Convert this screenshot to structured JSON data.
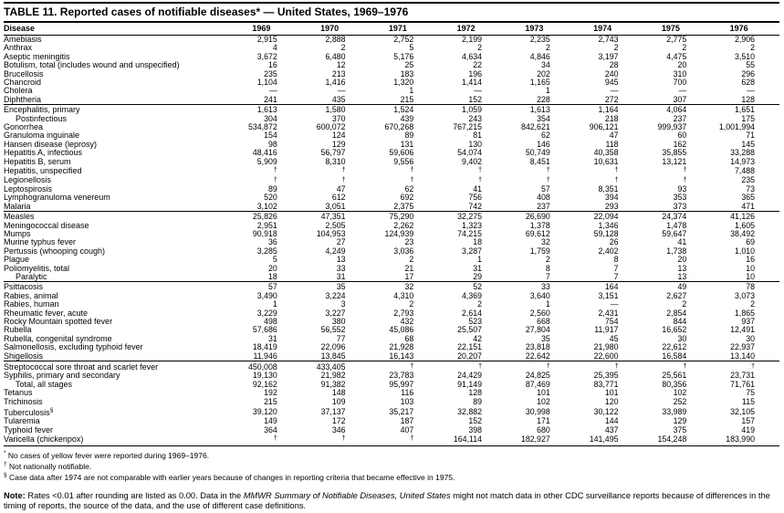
{
  "title": "TABLE 11. Reported cases of notifiable diseases* — United States, 1969–1976",
  "table": {
    "columns": [
      "Disease",
      "1969",
      "1970",
      "1971",
      "1972",
      "1973",
      "1974",
      "1975",
      "1976"
    ],
    "groups": [
      {
        "rows": [
          {
            "disease": "Amebiasis",
            "values": [
              "2,915",
              "2,888",
              "2,752",
              "2,199",
              "2,235",
              "2,743",
              "2,775",
              "2,906"
            ]
          },
          {
            "disease": "Anthrax",
            "values": [
              "4",
              "2",
              "5",
              "2",
              "2",
              "2",
              "2",
              "2"
            ]
          },
          {
            "disease": "Aseptic meningitis",
            "values": [
              "3,672",
              "6,480",
              "5,176",
              "4,634",
              "4,846",
              "3,197",
              "4,475",
              "3,510"
            ]
          },
          {
            "disease": "Botulism, total (includes wound and unspecified)",
            "values": [
              "16",
              "12",
              "25",
              "22",
              "34",
              "28",
              "20",
              "55"
            ]
          },
          {
            "disease": "Brucellosis",
            "values": [
              "235",
              "213",
              "183",
              "196",
              "202",
              "240",
              "310",
              "296"
            ]
          },
          {
            "disease": "Chancroid",
            "values": [
              "1,104",
              "1,416",
              "1,320",
              "1,414",
              "1,165",
              "945",
              "700",
              "628"
            ]
          },
          {
            "disease": "Cholera",
            "values": [
              "—",
              "—",
              "1",
              "—",
              "1",
              "—",
              "—",
              "—"
            ]
          },
          {
            "disease": "Diphtheria",
            "values": [
              "241",
              "435",
              "215",
              "152",
              "228",
              "272",
              "307",
              "128"
            ]
          }
        ]
      },
      {
        "rows": [
          {
            "disease": "Encephalitis, primary",
            "values": [
              "1,613",
              "1,580",
              "1,524",
              "1,059",
              "1,613",
              "1,164",
              "4,064",
              "1,651"
            ]
          },
          {
            "disease": "Postinfectious",
            "indent": true,
            "values": [
              "304",
              "370",
              "439",
              "243",
              "354",
              "218",
              "237",
              "175"
            ]
          },
          {
            "disease": "Gonorrhea",
            "values": [
              "534,872",
              "600,072",
              "670,268",
              "767,215",
              "842,621",
              "906,121",
              "999,937",
              "1,001,994"
            ]
          },
          {
            "disease": "Granuloma inguinale",
            "values": [
              "154",
              "124",
              "89",
              "81",
              "62",
              "47",
              "60",
              "71"
            ]
          },
          {
            "disease": "Hansen disease (leprosy)",
            "values": [
              "98",
              "129",
              "131",
              "130",
              "146",
              "118",
              "162",
              "145"
            ]
          },
          {
            "disease": "Hepatitis A, infectious",
            "values": [
              "48,416",
              "56,797",
              "59,606",
              "54,074",
              "50,749",
              "40,358",
              "35,855",
              "33,288"
            ]
          },
          {
            "disease": "Hepatitis B, serum",
            "values": [
              "5,909",
              "8,310",
              "9,556",
              "9,402",
              "8,451",
              "10,631",
              "13,121",
              "14,973"
            ]
          },
          {
            "disease": "Hepatitis, unspecified",
            "values": [
              "†",
              "†",
              "†",
              "†",
              "†",
              "†",
              "†",
              "7,488"
            ]
          },
          {
            "disease": "Legionellosis",
            "values": [
              "†",
              "†",
              "†",
              "†",
              "†",
              "†",
              "†",
              "235"
            ]
          },
          {
            "disease": "Leptospirosis",
            "values": [
              "89",
              "47",
              "62",
              "41",
              "57",
              "8,351",
              "93",
              "73"
            ]
          },
          {
            "disease": "Lymphogranuloma venereum",
            "values": [
              "520",
              "612",
              "692",
              "756",
              "408",
              "394",
              "353",
              "365"
            ]
          },
          {
            "disease": "Malaria",
            "values": [
              "3,102",
              "3,051",
              "2,375",
              "742",
              "237",
              "293",
              "373",
              "471"
            ]
          }
        ]
      },
      {
        "rows": [
          {
            "disease": "Measles",
            "values": [
              "25,826",
              "47,351",
              "75,290",
              "32,275",
              "26,690",
              "22,094",
              "24,374",
              "41,126"
            ]
          },
          {
            "disease": "Meningococcal disease",
            "values": [
              "2,951",
              "2,505",
              "2,262",
              "1,323",
              "1,378",
              "1,346",
              "1,478",
              "1,605"
            ]
          },
          {
            "disease": "Mumps",
            "values": [
              "90,918",
              "104,953",
              "124,939",
              "74,215",
              "69,612",
              "59,128",
              "59,647",
              "38,492"
            ]
          },
          {
            "disease": "Murine typhus fever",
            "values": [
              "36",
              "27",
              "23",
              "18",
              "32",
              "26",
              "41",
              "69"
            ]
          },
          {
            "disease": "Pertussis (whooping cough)",
            "values": [
              "3,285",
              "4,249",
              "3,036",
              "3,287",
              "1,759",
              "2,402",
              "1,738",
              "1,010"
            ]
          },
          {
            "disease": "Plague",
            "values": [
              "5",
              "13",
              "2",
              "1",
              "2",
              "8",
              "20",
              "16"
            ]
          },
          {
            "disease": "Poliomyelitis, total",
            "values": [
              "20",
              "33",
              "21",
              "31",
              "8",
              "7",
              "13",
              "10"
            ]
          },
          {
            "disease": "Paralytic",
            "indent": true,
            "values": [
              "18",
              "31",
              "17",
              "29",
              "7",
              "7",
              "13",
              "10"
            ]
          }
        ]
      },
      {
        "rows": [
          {
            "disease": "Psittacosis",
            "values": [
              "57",
              "35",
              "32",
              "52",
              "33",
              "164",
              "49",
              "78"
            ]
          },
          {
            "disease": "Rabies, animal",
            "values": [
              "3,490",
              "3,224",
              "4,310",
              "4,369",
              "3,640",
              "3,151",
              "2,627",
              "3,073"
            ]
          },
          {
            "disease": "Rabies, human",
            "values": [
              "1",
              "3",
              "2",
              "2",
              "1",
              "—",
              "2",
              "2"
            ]
          },
          {
            "disease": "Rheumatic fever, acute",
            "values": [
              "3,229",
              "3,227",
              "2,793",
              "2,614",
              "2,560",
              "2,431",
              "2,854",
              "1,865"
            ]
          },
          {
            "disease": "Rocky Mountain spotted fever",
            "values": [
              "498",
              "380",
              "432",
              "523",
              "668",
              "754",
              "844",
              "937"
            ]
          },
          {
            "disease": "Rubella",
            "values": [
              "57,686",
              "56,552",
              "45,086",
              "25,507",
              "27,804",
              "11,917",
              "16,652",
              "12,491"
            ]
          },
          {
            "disease": "Rubella, congenital syndrome",
            "values": [
              "31",
              "77",
              "68",
              "42",
              "35",
              "45",
              "30",
              "30"
            ]
          },
          {
            "disease": "Salmonellosis, excluding typhoid fever",
            "values": [
              "18,419",
              "22,096",
              "21,928",
              "22,151",
              "23,818",
              "21,980",
              "22,612",
              "22,937"
            ]
          },
          {
            "disease": "Shigellosis",
            "values": [
              "11,946",
              "13,845",
              "16,143",
              "20,207",
              "22,642",
              "22,600",
              "16,584",
              "13,140"
            ]
          }
        ]
      },
      {
        "rows": [
          {
            "disease": "Streptococcal sore throat and scarlet fever",
            "values": [
              "450,008",
              "433,405",
              "†",
              "†",
              "†",
              "†",
              "†",
              "†"
            ]
          },
          {
            "disease": "Syphilis, primary and secondary",
            "values": [
              "19,130",
              "21,982",
              "23,783",
              "24,429",
              "24,825",
              "25,395",
              "25,561",
              "23,731"
            ]
          },
          {
            "disease": "Total, all stages",
            "indent": true,
            "values": [
              "92,162",
              "91,382",
              "95,997",
              "91,149",
              "87,469",
              "83,771",
              "80,356",
              "71,761"
            ]
          },
          {
            "disease": "Tetanus",
            "values": [
              "192",
              "148",
              "116",
              "128",
              "101",
              "101",
              "102",
              "75"
            ]
          },
          {
            "disease": "Trichinosis",
            "values": [
              "215",
              "109",
              "103",
              "89",
              "102",
              "120",
              "252",
              "115"
            ]
          },
          {
            "disease": "Tuberculosis",
            "marker": "§",
            "values": [
              "39,120",
              "37,137",
              "35,217",
              "32,882",
              "30,998",
              "30,122",
              "33,989",
              "32,105"
            ]
          },
          {
            "disease": "Tularemia",
            "values": [
              "149",
              "172",
              "187",
              "152",
              "171",
              "144",
              "129",
              "157"
            ]
          },
          {
            "disease": "Typhoid fever",
            "values": [
              "364",
              "346",
              "407",
              "398",
              "680",
              "437",
              "375",
              "419"
            ]
          },
          {
            "disease": "Varicella (chickenpox)",
            "values": [
              "†",
              "†",
              "†",
              "164,114",
              "182,927",
              "141,495",
              "154,248",
              "183,990"
            ]
          }
        ]
      }
    ]
  },
  "footnotes": [
    {
      "marker": "*",
      "text": "No cases of yellow fever were reported during 1969–1976."
    },
    {
      "marker": "†",
      "text": "Not nationally notifiable."
    },
    {
      "marker": "§",
      "text": "Case data after 1974 are not comparable with earlier years because of changes in reporting criteria that became effective in 1975."
    }
  ],
  "note": {
    "label": "Note:",
    "before": " Rates <0.01 after rounding are listed as 0.00. Data in the ",
    "italic": "MMWR Summary of Notifiable Diseases, United States",
    "after": " might not match data in other CDC surveillance reports because of differences in the timing of reports, the source of the data, and the use of different case definitions."
  }
}
